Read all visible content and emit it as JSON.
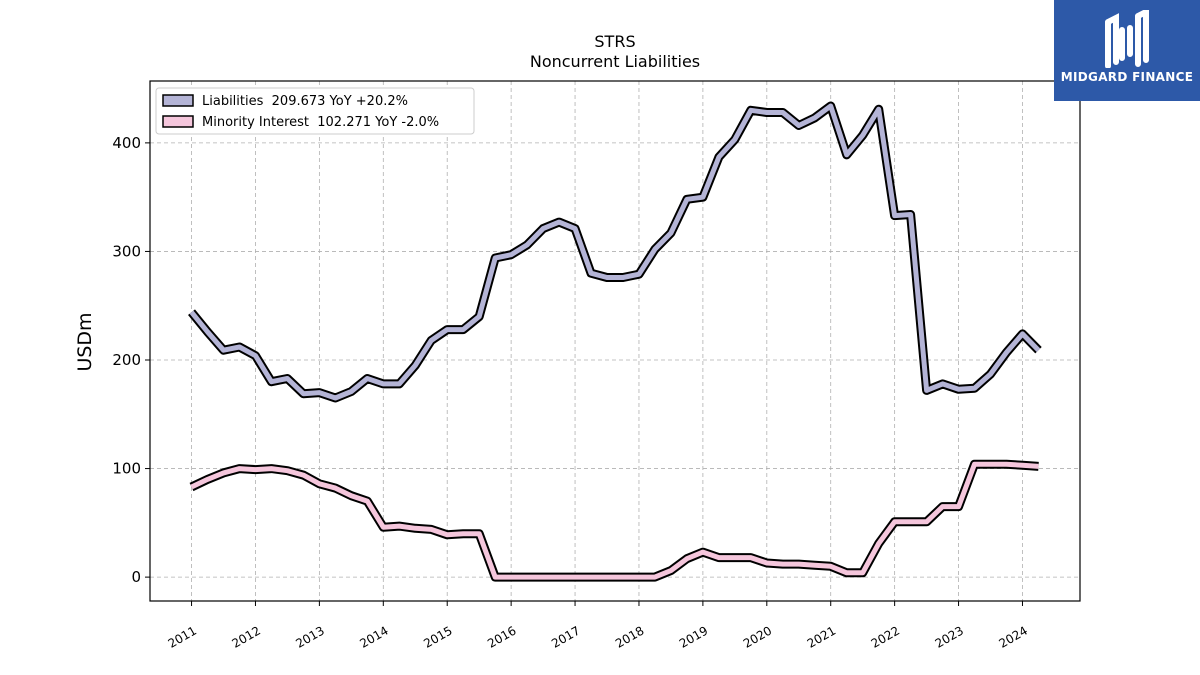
{
  "chart_data": {
    "type": "line",
    "title": "STRS",
    "subtitle": "Noncurrent  Liabilities",
    "ylabel": "USDm",
    "ylim": [
      -22,
      457
    ],
    "y_ticks": [
      0,
      100,
      200,
      300,
      400
    ],
    "x_tick_labels": [
      "2011",
      "2012",
      "2013",
      "2014",
      "2015",
      "2016",
      "2017",
      "2018",
      "2019",
      "2020",
      "2021",
      "2022",
      "2023",
      "2024"
    ],
    "xlim": [
      2010.35,
      2024.9
    ],
    "grid": true,
    "legend_position": "top-left",
    "series": [
      {
        "name": "Liabilities  209.673 YoY +20.2%",
        "color": "#b4b4d6",
        "x": [
          2011.0,
          2011.25,
          2011.5,
          2011.75,
          2012.0,
          2012.25,
          2012.5,
          2012.75,
          2013.0,
          2013.25,
          2013.5,
          2013.75,
          2014.0,
          2014.25,
          2014.5,
          2014.75,
          2015.0,
          2015.25,
          2015.5,
          2015.75,
          2016.0,
          2016.25,
          2016.5,
          2016.75,
          2017.0,
          2017.25,
          2017.5,
          2017.75,
          2018.0,
          2018.25,
          2018.5,
          2018.75,
          2019.0,
          2019.25,
          2019.5,
          2019.75,
          2020.0,
          2020.25,
          2020.5,
          2020.75,
          2021.0,
          2021.25,
          2021.5,
          2021.75,
          2022.0,
          2022.25,
          2022.5,
          2022.75,
          2023.0,
          2023.25,
          2023.5,
          2023.75,
          2024.0,
          2024.25
        ],
        "values": [
          244,
          226,
          209,
          212,
          204,
          180,
          183,
          169,
          170,
          165,
          171,
          183,
          178,
          178,
          195,
          218,
          228,
          228,
          240,
          294,
          297,
          306,
          321,
          327,
          321,
          280,
          276,
          276,
          279,
          302,
          317,
          348,
          350,
          387,
          403,
          430,
          428,
          428,
          416,
          423,
          434,
          389,
          407,
          431,
          333,
          334,
          172,
          178,
          173,
          174,
          187,
          207,
          224,
          209
        ]
      },
      {
        "name": "Minority Interest  102.271 YoY -2.0%",
        "color": "#f5c6dc",
        "x": [
          2011.0,
          2011.25,
          2011.5,
          2011.75,
          2012.0,
          2012.25,
          2012.5,
          2012.75,
          2013.0,
          2013.25,
          2013.5,
          2013.75,
          2014.0,
          2014.25,
          2014.5,
          2014.75,
          2015.0,
          2015.25,
          2015.5,
          2015.75,
          2016.0,
          2016.25,
          2016.5,
          2016.75,
          2017.0,
          2017.25,
          2017.5,
          2017.75,
          2018.0,
          2018.25,
          2018.5,
          2018.75,
          2019.0,
          2019.25,
          2019.5,
          2019.75,
          2020.0,
          2020.25,
          2020.5,
          2020.75,
          2021.0,
          2021.25,
          2021.5,
          2021.75,
          2022.0,
          2022.25,
          2022.5,
          2022.75,
          2023.0,
          2023.25,
          2023.5,
          2023.75,
          2024.0,
          2024.25
        ],
        "values": [
          83,
          90,
          96,
          100,
          99,
          100,
          98,
          94,
          86,
          82,
          75,
          70,
          46,
          47,
          45,
          44,
          39,
          40,
          40,
          0,
          0,
          0,
          0,
          0,
          0,
          0,
          0,
          0,
          0,
          0,
          6,
          17,
          23,
          18,
          18,
          18,
          13,
          12,
          12,
          11,
          10,
          4,
          4,
          31,
          51,
          51,
          51,
          65,
          65,
          104,
          104,
          104,
          103,
          102
        ]
      }
    ]
  },
  "logo": {
    "text": "MIDGARD FINANCE"
  }
}
